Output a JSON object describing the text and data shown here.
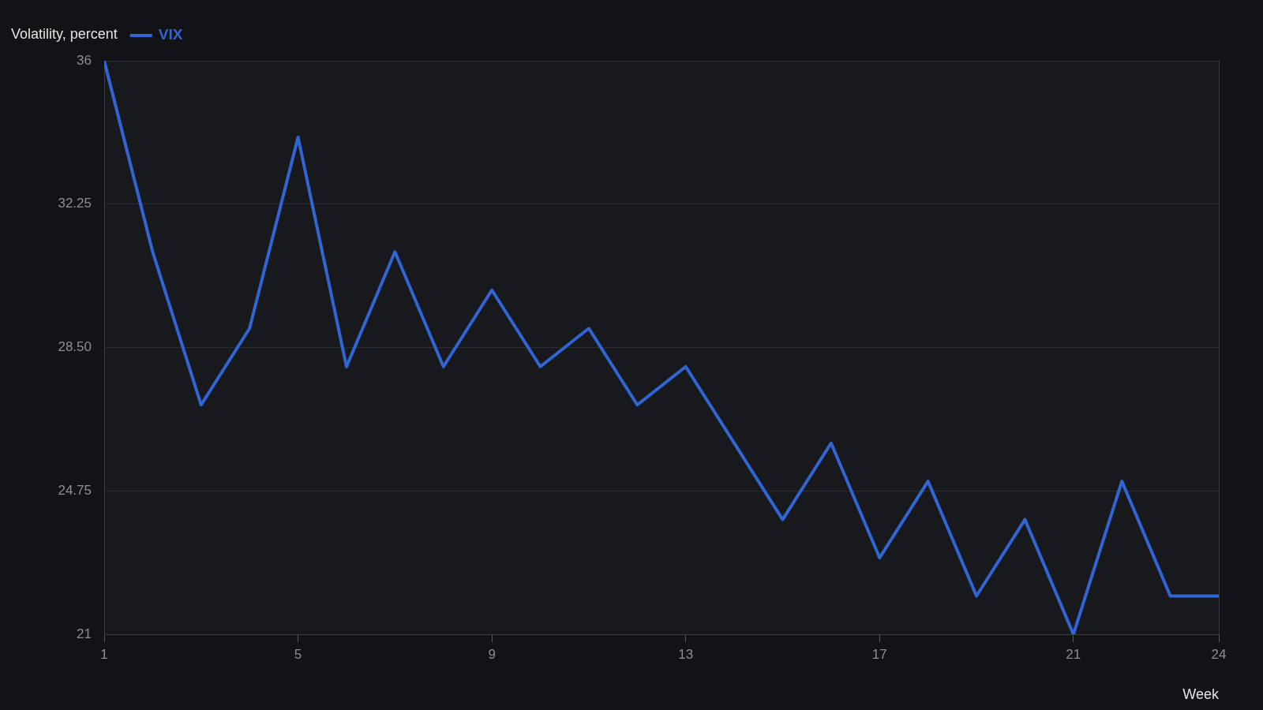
{
  "chart_data": {
    "type": "line",
    "ylabel": "Volatility, percent",
    "xlabel": "Week",
    "x": [
      1,
      2,
      3,
      4,
      5,
      6,
      7,
      8,
      9,
      10,
      11,
      12,
      13,
      14,
      15,
      16,
      17,
      18,
      19,
      20,
      21,
      22,
      23,
      24
    ],
    "series": [
      {
        "name": "VIX",
        "color": "#3165d4",
        "values": [
          36,
          31,
          27,
          29,
          34,
          28,
          31,
          28,
          30,
          28,
          29,
          27,
          28,
          26,
          24,
          26,
          23,
          25,
          22,
          24,
          21,
          25,
          22,
          22
        ]
      }
    ],
    "xlim": [
      1,
      24
    ],
    "xticks": [
      1,
      5,
      9,
      13,
      17,
      21,
      24
    ],
    "ylim": [
      21,
      36
    ],
    "yticks": [
      21,
      24.75,
      {
        "value": 28.5,
        "label": "28.50"
      },
      32.25,
      36
    ],
    "grid": "y",
    "legend": "top left"
  }
}
